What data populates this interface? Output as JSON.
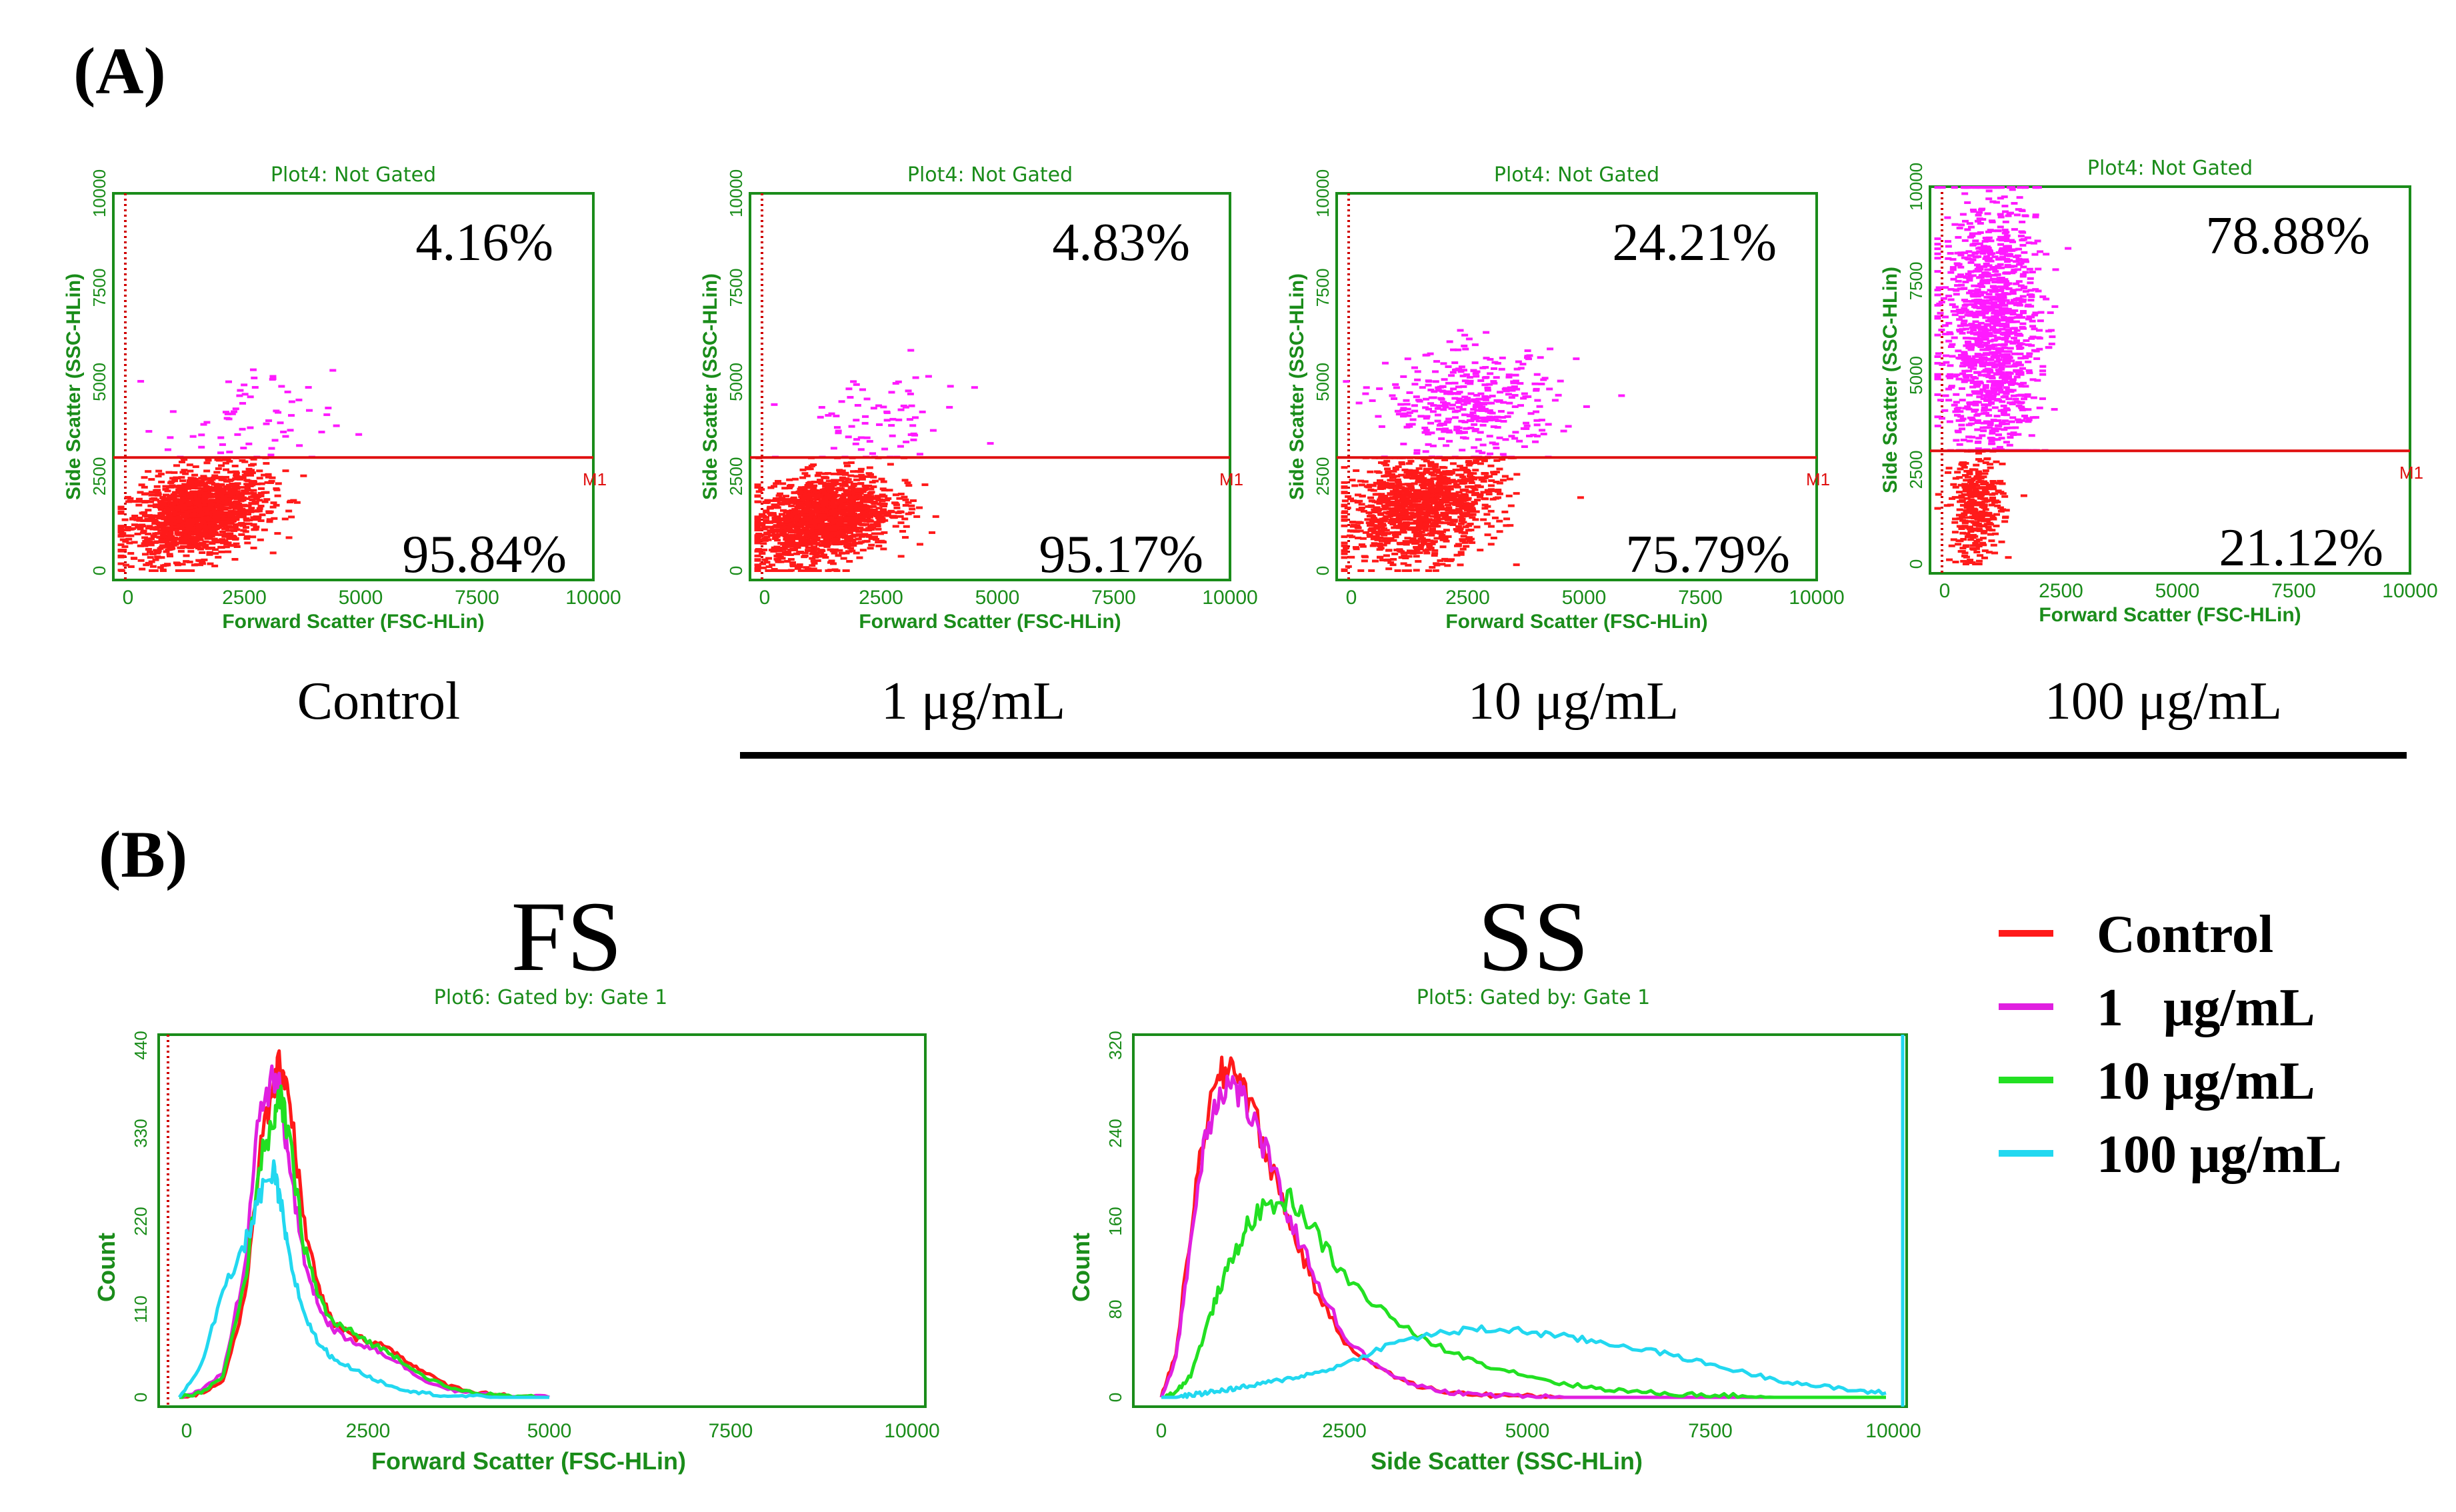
{
  "panel_a": {
    "label": "(A)",
    "plot_title": "Plot4:  Not Gated",
    "x_label": "Forward Scatter (FSC-HLin)",
    "y_label": "Side Scatter (SSC-HLin)",
    "marker_label": "M1",
    "bracket_note": "treatment groups underline",
    "plots": [
      {
        "condition": "Control",
        "upper_pct": "4.16%",
        "lower_pct": "95.84%"
      },
      {
        "condition": "1 μg/mL",
        "upper_pct": "4.83%",
        "lower_pct": "95.17%"
      },
      {
        "condition": "10 μg/mL",
        "upper_pct": "24.21%",
        "lower_pct": "75.79%"
      },
      {
        "condition": "100 μg/mL",
        "upper_pct": "78.88%",
        "lower_pct": "21.12%"
      }
    ]
  },
  "panel_b": {
    "label": "(B)",
    "fs": {
      "title": "FS",
      "subtitle": "Plot6:  Gated by: Gate 1",
      "x_label": "Forward Scatter (FSC-HLin)",
      "y_label": "Count"
    },
    "ss": {
      "title": "SS",
      "subtitle": "Plot5:  Gated by: Gate 1",
      "x_label": "Side Scatter (SSC-HLin)",
      "y_label": "Count"
    }
  },
  "legend": {
    "items": [
      {
        "label": "Control",
        "color": "#ff1a1a"
      },
      {
        "label": "1   μg/mL",
        "color": "#e020e0"
      },
      {
        "label": "10 μg/mL",
        "color": "#22e022"
      },
      {
        "label": "100 μg/mL",
        "color": "#22d8f0"
      }
    ]
  },
  "colors": {
    "axis_green": "#1a8c1a",
    "gate_red": "#e01010",
    "low_red": "#ff1a1a",
    "high_magenta": "#ff1aff"
  },
  "chart_data": [
    {
      "type": "scatter",
      "title": "Plot4:  Not Gated",
      "xlabel": "Forward Scatter (FSC-HLin)",
      "ylabel": "Side Scatter (SSC-HLin)",
      "xlim": [
        0,
        10000
      ],
      "ylim": [
        0,
        10000
      ],
      "xticks": [
        0,
        2500,
        5000,
        7500,
        10000
      ],
      "yticks": [
        0,
        2500,
        5000,
        7500,
        10000
      ],
      "gate_y": 3000,
      "series": [
        {
          "name": "Control",
          "upper_pct": 4.16,
          "lower_pct": 95.84,
          "center": [
            1500,
            1500
          ],
          "spread": [
            900,
            700
          ],
          "upper_center": [
            2600,
            3900
          ]
        },
        {
          "name": "1 μg/mL",
          "upper_pct": 4.83,
          "lower_pct": 95.17,
          "center": [
            1300,
            1400
          ],
          "spread": [
            900,
            700
          ],
          "upper_center": [
            2400,
            3900
          ]
        },
        {
          "name": "10 μg/mL",
          "upper_pct": 24.21,
          "lower_pct": 75.79,
          "center": [
            1500,
            1700
          ],
          "spread": [
            1000,
            850
          ],
          "upper_center": [
            2600,
            4400
          ]
        },
        {
          "name": "100 μg/mL",
          "upper_pct": 78.88,
          "lower_pct": 21.12,
          "center": [
            700,
            1500
          ],
          "spread": [
            350,
            900
          ],
          "upper_center": [
            1000,
            6200
          ]
        }
      ]
    },
    {
      "type": "line",
      "title": "FS",
      "subtitle": "Plot6:  Gated by: Gate 1",
      "xlabel": "Forward Scatter (FSC-HLin)",
      "ylabel": "Count",
      "xlim": [
        0,
        10000
      ],
      "ylim": [
        0,
        440
      ],
      "xticks": [
        0,
        2500,
        5000,
        7500,
        10000
      ],
      "yticks": [
        0,
        110,
        220,
        330,
        440
      ],
      "x": [
        -100,
        200,
        500,
        800,
        1000,
        1200,
        1300,
        1400,
        1600,
        1800,
        2000,
        2300,
        2600,
        2900,
        3200,
        3600,
        4000,
        4500,
        5000
      ],
      "series": [
        {
          "name": "Control",
          "values": [
            0,
            5,
            20,
            120,
            300,
            390,
            415,
            390,
            230,
            140,
            95,
            75,
            70,
            55,
            35,
            15,
            6,
            2,
            0
          ]
        },
        {
          "name": "1 μg/mL",
          "values": [
            0,
            8,
            30,
            160,
            360,
            395,
            380,
            300,
            180,
            120,
            85,
            70,
            60,
            45,
            25,
            10,
            4,
            1,
            0
          ]
        },
        {
          "name": "10 μg/mL",
          "values": [
            0,
            6,
            25,
            140,
            290,
            350,
            370,
            330,
            200,
            130,
            95,
            80,
            65,
            50,
            30,
            12,
            5,
            1,
            0
          ]
        },
        {
          "name": "100 μg/mL",
          "values": [
            0,
            40,
            130,
            190,
            250,
            280,
            240,
            180,
            110,
            70,
            50,
            35,
            22,
            12,
            6,
            2,
            1,
            0,
            0
          ]
        }
      ]
    },
    {
      "type": "line",
      "title": "SS",
      "subtitle": "Plot5:  Gated by: Gate 1",
      "xlabel": "Side Scatter (SSC-HLin)",
      "ylabel": "Count",
      "xlim": [
        0,
        10000
      ],
      "ylim": [
        0,
        320
      ],
      "xticks": [
        0,
        2500,
        5000,
        7500,
        10000
      ],
      "yticks": [
        0,
        80,
        160,
        240,
        320
      ],
      "x": [
        0,
        200,
        400,
        600,
        800,
        1000,
        1200,
        1500,
        1800,
        2100,
        2500,
        3000,
        3500,
        4000,
        4500,
        5000,
        5500,
        6000,
        6500,
        7000,
        7500,
        8000,
        8500,
        9000,
        9500,
        9900
      ],
      "series": [
        {
          "name": "Control",
          "values": [
            0,
            40,
            150,
            250,
            290,
            305,
            270,
            210,
            150,
            100,
            50,
            25,
            10,
            4,
            2,
            1,
            0,
            0,
            0,
            0,
            0,
            0,
            0,
            0,
            0,
            0
          ]
        },
        {
          "name": "1 μg/mL",
          "values": [
            0,
            35,
            140,
            240,
            280,
            285,
            260,
            210,
            155,
            110,
            55,
            25,
            10,
            4,
            2,
            1,
            0,
            0,
            0,
            0,
            0,
            0,
            0,
            0,
            0,
            0
          ]
        },
        {
          "name": "10 μg/mL",
          "values": [
            0,
            5,
            20,
            60,
            100,
            130,
            160,
            175,
            180,
            150,
            110,
            80,
            55,
            40,
            28,
            20,
            12,
            8,
            5,
            3,
            2,
            1,
            0,
            0,
            0,
            0
          ]
        },
        {
          "name": "100 μg/mL",
          "values": [
            0,
            0,
            2,
            4,
            6,
            8,
            10,
            14,
            18,
            22,
            30,
            45,
            55,
            60,
            62,
            60,
            55,
            50,
            45,
            38,
            30,
            22,
            15,
            10,
            6,
            4
          ]
        }
      ]
    }
  ]
}
